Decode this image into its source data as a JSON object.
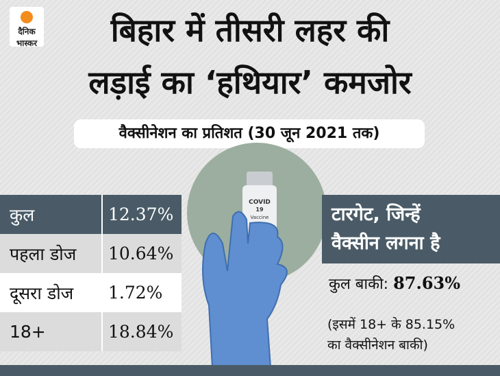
{
  "logo": {
    "line1": "दैनिक",
    "line2": "भास्कर"
  },
  "header": {
    "title_line1": "बिहार में तीसरी लहर की",
    "title_line2": "लड़ाई का ‘हथियार’ कमजोर",
    "subtitle": "वैक्सीनेशन का प्रतिशत (30 जून 2021 तक)"
  },
  "table": {
    "rows": [
      [
        "कुल",
        "12.37%"
      ],
      [
        "पहला डोज",
        "10.64%"
      ],
      [
        "दूसरा डोज",
        "1.72%"
      ],
      [
        "18+",
        "18.84%"
      ]
    ]
  },
  "vial": {
    "line1": "COVID",
    "line2": "19",
    "line3": "Vaccine"
  },
  "target": {
    "heading_line1": "टारगेट, जिन्हें",
    "heading_line2": "वैक्सीन लगना है",
    "remaining_label": "कुल बाकी:",
    "remaining_value": "87.63%",
    "note_line1": "(इसमें 18+ के 85.15%",
    "note_line2": "का वैक्सीनेशन बाकी)"
  }
}
